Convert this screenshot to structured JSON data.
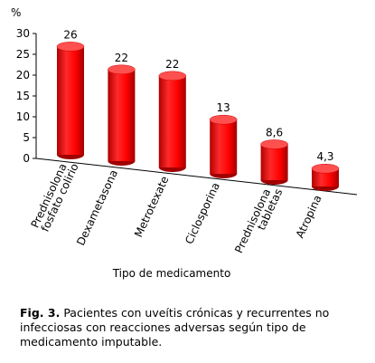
{
  "chart_data": {
    "type": "bar3d",
    "y_label": "%",
    "x_label": "Tipo de medicamento",
    "categories": [
      [
        "Prednisolona",
        "fosfato colirio"
      ],
      [
        "Dexametasona"
      ],
      [
        "Metrotexate"
      ],
      [
        "Ciclosporina"
      ],
      [
        "Prednisolona",
        "tabletas"
      ],
      [
        "Atropina"
      ]
    ],
    "values": [
      26,
      22,
      22,
      13,
      8.6,
      4.3
    ],
    "value_labels": [
      "26",
      "22",
      "22",
      "13",
      "8,6",
      "4,3"
    ],
    "color": "#ff0000",
    "ylim": [
      0,
      30
    ],
    "yticks": [
      0,
      5,
      10,
      15,
      20,
      25,
      30
    ]
  },
  "caption": {
    "label": "Fig. 3.",
    "text": "Pacientes con uveítis crónicas y recurrentes no infecciosas con reacciones adversas según tipo de medicamento imputable."
  }
}
